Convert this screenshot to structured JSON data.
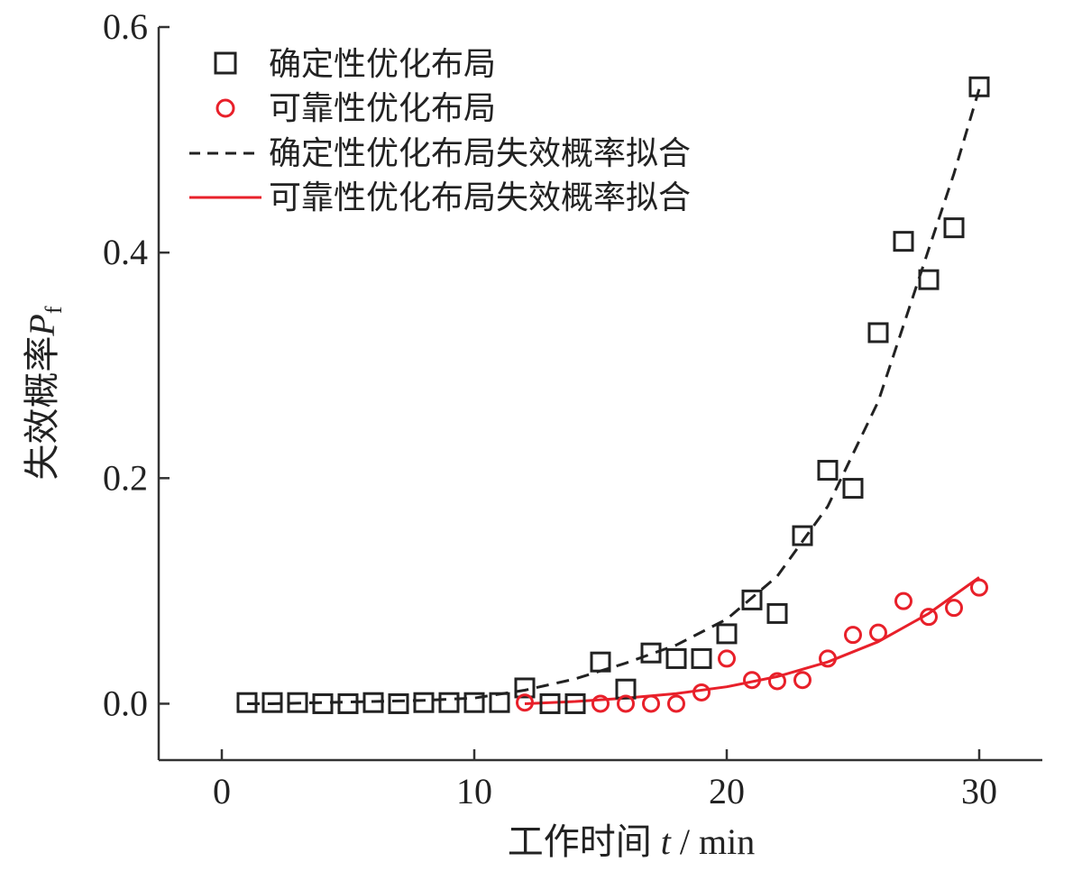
{
  "chart_data": {
    "type": "scatter",
    "xlabel": "工作时间 t / min",
    "xlabel_parts": {
      "main": "工作时间",
      "var": "t",
      "sep": " / ",
      "unit": "min"
    },
    "ylabel": "失效概率 Pf",
    "ylabel_parts": {
      "main": "失效概率",
      "var": "P",
      "sub": "f"
    },
    "xlim": [
      -2.5,
      32.5
    ],
    "ylim": [
      -0.05,
      0.6
    ],
    "x_ticks": [
      0,
      10,
      20,
      30
    ],
    "x_tick_labels": [
      "0",
      "10",
      "20",
      "30"
    ],
    "y_ticks": [
      0.0,
      0.2,
      0.4,
      0.6
    ],
    "y_tick_labels": [
      "0.0",
      "0.2",
      "0.4",
      "0.6"
    ],
    "grid": false,
    "legend_position": "top-left",
    "series": [
      {
        "name": "确定性优化布局",
        "kind": "scatter",
        "marker": "square",
        "color": "#222222",
        "x": [
          1,
          2,
          3,
          4,
          5,
          6,
          7,
          8,
          9,
          10,
          11,
          12,
          13,
          14,
          15,
          16,
          17,
          18,
          19,
          20,
          21,
          22,
          23,
          24,
          25,
          26,
          27,
          28,
          29,
          30
        ],
        "y": [
          0.001,
          0.001,
          0.001,
          0.0,
          0.0,
          0.001,
          0.0,
          0.001,
          0.001,
          0.001,
          0.001,
          0.014,
          0.0,
          0.0,
          0.037,
          0.013,
          0.045,
          0.04,
          0.04,
          0.062,
          0.092,
          0.08,
          0.149,
          0.207,
          0.191,
          0.329,
          0.41,
          0.376,
          0.422,
          0.547
        ]
      },
      {
        "name": "可靠性优化布局",
        "kind": "scatter",
        "marker": "circle",
        "color": "#e8202a",
        "x": [
          12,
          15,
          16,
          17,
          18,
          19,
          20,
          21,
          22,
          23,
          24,
          25,
          26,
          27,
          28,
          29,
          30
        ],
        "y": [
          0.001,
          0.0,
          0.0,
          0.0,
          0.0,
          0.01,
          0.04,
          0.021,
          0.02,
          0.021,
          0.04,
          0.061,
          0.063,
          0.091,
          0.077,
          0.085,
          0.103
        ]
      },
      {
        "name": "确定性优化布局失效概率拟合",
        "kind": "line",
        "dash": true,
        "color": "#222222",
        "x": [
          1,
          2,
          4,
          6,
          8,
          10,
          12,
          14,
          16,
          18,
          20,
          22,
          24,
          26,
          28,
          29,
          30
        ],
        "y": [
          0.0,
          0.0,
          0.001,
          0.002,
          0.003,
          0.005,
          0.012,
          0.022,
          0.036,
          0.052,
          0.075,
          0.113,
          0.175,
          0.268,
          0.403,
          0.47,
          0.545
        ]
      },
      {
        "name": "可靠性优化布局失效概率拟合",
        "kind": "line",
        "dash": false,
        "color": "#e8202a",
        "x": [
          12,
          14,
          16,
          18,
          20,
          22,
          24,
          26,
          28,
          30
        ],
        "y": [
          0.0,
          0.002,
          0.005,
          0.009,
          0.015,
          0.024,
          0.037,
          0.055,
          0.08,
          0.112
        ]
      }
    ]
  }
}
